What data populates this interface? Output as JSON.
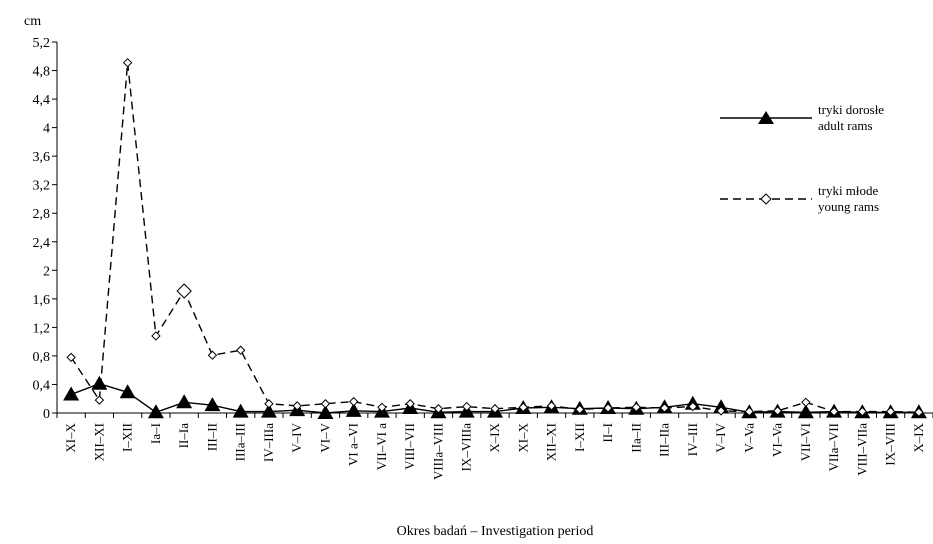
{
  "chart_data": {
    "type": "line",
    "ylabel": "cm",
    "xlabel": "Okres badań – Investigation period",
    "ylim": [
      0,
      5.2
    ],
    "yticks": [
      "0",
      "0,4",
      "0,8",
      "1,2",
      "1,6",
      "2",
      "2,4",
      "2,8",
      "3,2",
      "3,6",
      "4",
      "4,4",
      "4,8",
      "5,2"
    ],
    "categories": [
      "XI–X",
      "XII–XI",
      "I–XII",
      "Ia–I",
      "II–Ia",
      "III–II",
      "IIIa–III",
      "IV–IIIa",
      "V–IV",
      "VI–V",
      "VI a–VI",
      "VII–VI a",
      "VIII–VII",
      "VIIIa–VIII",
      "IX–VIIIa",
      "X–IX",
      "XI–X",
      "XII–XI",
      "I–XII",
      "II–I",
      "IIa–II",
      "III–IIa",
      "IV–III",
      "V–IV",
      "V–Va",
      "VI–Va",
      "VII–VI",
      "VIIa–VII",
      "VIII–VIIa",
      "IX–VIII",
      "X–IX"
    ],
    "series": [
      {
        "name": "tryki dorosłe\nadult rams",
        "line": "solid",
        "marker": "triangle",
        "values": [
          0.26,
          0.41,
          0.29,
          0.01,
          0.15,
          0.11,
          0.02,
          0.02,
          0.04,
          0.0,
          0.03,
          0.02,
          0.07,
          0.01,
          0.02,
          0.02,
          0.07,
          0.08,
          0.06,
          0.07,
          0.06,
          0.08,
          0.13,
          0.08,
          0.01,
          0.02,
          0.01,
          0.02,
          0.01,
          0.01,
          0.01
        ]
      },
      {
        "name": "tryki młode\nyoung rams",
        "line": "dashed",
        "marker": "diamond",
        "values": [
          0.78,
          0.18,
          4.91,
          1.08,
          1.71,
          0.81,
          0.88,
          0.13,
          0.1,
          0.13,
          0.16,
          0.08,
          0.13,
          0.06,
          0.09,
          0.06,
          0.08,
          0.1,
          0.05,
          0.07,
          0.08,
          0.07,
          0.09,
          0.03,
          0.02,
          0.03,
          0.15,
          0.02,
          0.02,
          0.02,
          0.01
        ]
      }
    ],
    "legend": {
      "items": [
        {
          "line1": "tryki dorosłe",
          "line2": "adult rams"
        },
        {
          "line1": "tryki młode",
          "line2": "young rams"
        }
      ]
    },
    "grid": false,
    "legend_position": "right"
  }
}
